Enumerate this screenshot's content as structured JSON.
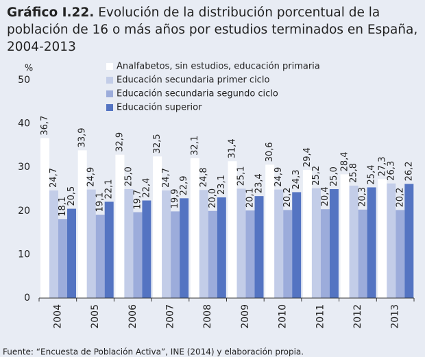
{
  "chart_data": {
    "type": "bar",
    "title_label": "Gráfico I.22.",
    "title": "Evolución de la distribución porcentual de la población de 16 o más años por estudios terminados en España, 2004-2013",
    "y_axis_label": "%",
    "source": "Fuente: “Encuesta de Población Activa”, INE (2014) y elaboración propia.",
    "categories": [
      "2004",
      "2005",
      "2006",
      "2007",
      "2008",
      "2009",
      "2010",
      "2011",
      "2012",
      "2013"
    ],
    "series": [
      {
        "name": "Analfabetos, sin estudios, educación primaria",
        "color": "#ffffff",
        "values": [
          36.7,
          33.9,
          32.9,
          32.5,
          32.1,
          31.4,
          30.6,
          29.4,
          28.4,
          27.3
        ],
        "value_labels": [
          "36,7",
          "33,9",
          "32,9",
          "32,5",
          "32,1",
          "31,4",
          "30,6",
          "29,4",
          "28,4",
          "27,3"
        ]
      },
      {
        "name": "Educación secundaria primer ciclo",
        "color": "#c3cde8",
        "values": [
          24.7,
          24.9,
          25.0,
          24.7,
          24.8,
          25.1,
          24.9,
          25.2,
          25.8,
          26.3
        ],
        "value_labels": [
          "24,7",
          "24,9",
          "25,0",
          "24,7",
          "24,8",
          "25,1",
          "24,9",
          "25,2",
          "25,8",
          "26,3"
        ]
      },
      {
        "name": "Educación secundaria segundo ciclo",
        "color": "#9cacdb",
        "values": [
          18.1,
          19.1,
          19.7,
          19.9,
          20.0,
          20.1,
          20.2,
          20.4,
          20.3,
          20.2
        ],
        "value_labels": [
          "18,1",
          "19,1",
          "19,7",
          "19,9",
          "20,0",
          "20,1",
          "20,2",
          "20,4",
          "20,3",
          "20,2"
        ]
      },
      {
        "name": "Educación superior",
        "color": "#5474c2",
        "values": [
          20.5,
          22.1,
          22.4,
          22.9,
          23.1,
          23.4,
          24.3,
          25.0,
          25.4,
          26.2
        ],
        "value_labels": [
          "20,5",
          "22,1",
          "22,4",
          "22,9",
          "23,1",
          "23,4",
          "24,3",
          "25,0",
          "25,4",
          "26,2"
        ]
      }
    ],
    "ylim": [
      0,
      50
    ],
    "yticks": [
      0,
      10,
      20,
      30,
      40,
      50
    ],
    "grid": false,
    "legend": "top"
  }
}
